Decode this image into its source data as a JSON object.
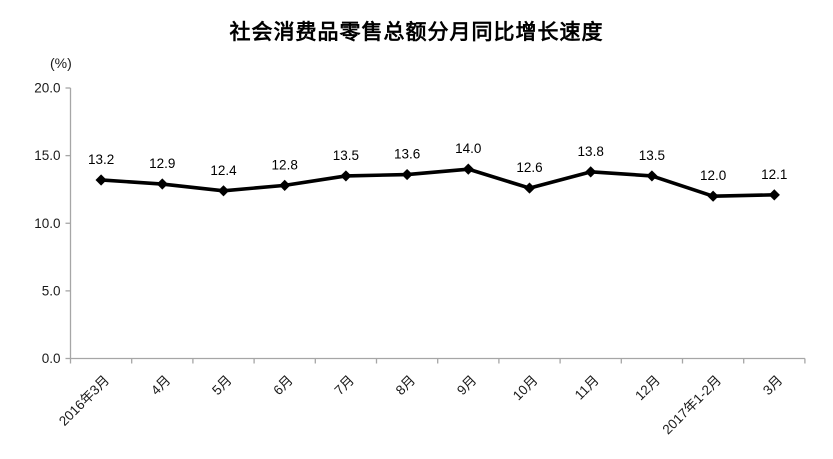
{
  "chart_data": {
    "type": "line",
    "title": "社会消费品零售总额分月同比增长速度",
    "unit_label": "(%)",
    "categories": [
      "2016年3月",
      "4月",
      "5月",
      "6月",
      "7月",
      "8月",
      "9月",
      "10月",
      "11月",
      "12月",
      "2017年1-2月",
      "3月"
    ],
    "values": [
      13.2,
      12.9,
      12.4,
      12.8,
      13.5,
      13.6,
      14.0,
      12.6,
      13.8,
      13.5,
      12.0,
      12.1
    ],
    "data_labels": [
      "13.2",
      "12.9",
      "12.4",
      "12.8",
      "13.5",
      "13.6",
      "14.0",
      "12.6",
      "13.8",
      "13.5",
      "12.0",
      "12.1"
    ],
    "ylim": [
      0,
      20
    ],
    "ytick_step": 5,
    "ytick_labels": [
      "0.0",
      "5.0",
      "10.0",
      "15.0",
      "20.0"
    ],
    "grid": false,
    "legend": "none",
    "xlabel": "",
    "ylabel": "(%)",
    "style": {
      "line_color": "#000000",
      "marker": "diamond",
      "marker_color": "#000000",
      "axis_color": "#a6a6a6",
      "text_color": "#1a1a1a",
      "background": "#ffffff"
    }
  }
}
